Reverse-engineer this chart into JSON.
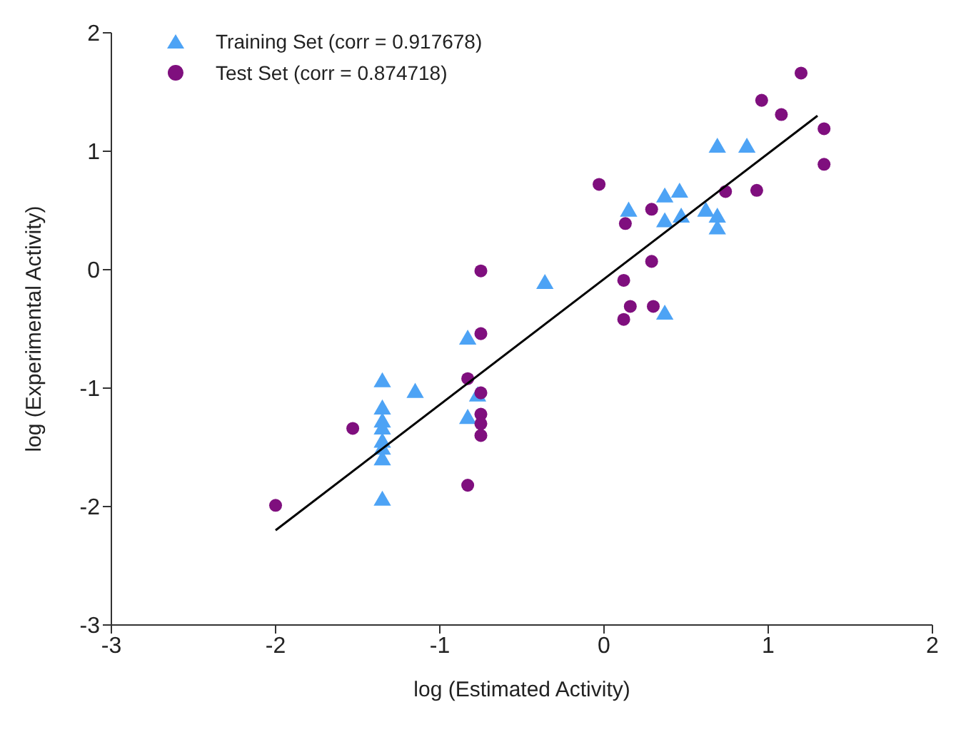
{
  "chart_data": {
    "type": "scatter",
    "xlabel": "log (Estimated Activity)",
    "ylabel": "log (Experimental Activity)",
    "xlim": [
      -3,
      2
    ],
    "ylim": [
      -3,
      2
    ],
    "xticks": [
      -3,
      -2,
      -1,
      0,
      1,
      2
    ],
    "yticks": [
      -3,
      -2,
      -1,
      0,
      1,
      2
    ],
    "grid": false,
    "legend": "top left",
    "series": [
      {
        "name": "Training Set (corr = 0.917678)",
        "color": "#4da3f5",
        "marker": "triangle",
        "x": [
          -1.35,
          -1.35,
          -1.35,
          -1.35,
          -1.35,
          -1.35,
          -1.35,
          -1.35,
          -1.15,
          -0.83,
          -0.83,
          -0.77,
          -0.36,
          0.15,
          0.37,
          0.46,
          0.37,
          0.47,
          0.62,
          0.69,
          0.69,
          0.69,
          0.87,
          0.37
        ],
        "values": [
          -0.95,
          -1.18,
          -1.29,
          -1.35,
          -1.46,
          -1.52,
          -1.61,
          -1.95,
          -1.04,
          -0.59,
          -1.26,
          -1.07,
          -0.12,
          0.49,
          0.61,
          0.65,
          0.4,
          0.44,
          0.49,
          0.44,
          0.34,
          1.03,
          1.03,
          -0.38
        ]
      },
      {
        "name": "Test Set (corr = 0.874718)",
        "color": "#7f0f7e",
        "marker": "circle",
        "x": [
          -2,
          -1.53,
          -0.83,
          -0.83,
          -0.75,
          -0.75,
          -0.75,
          -0.75,
          -0.75,
          -0.75,
          -0.03,
          0.29,
          0.13,
          0.29,
          0.12,
          0.16,
          0.12,
          0.3,
          0.74,
          0.93,
          1.2,
          0.96,
          1.08,
          1.34,
          1.34
        ],
        "values": [
          -1.99,
          -1.34,
          -1.82,
          -0.92,
          -0.01,
          -0.54,
          -1.04,
          -1.22,
          -1.3,
          -1.4,
          0.72,
          0.51,
          0.39,
          0.07,
          -0.09,
          -0.31,
          -0.42,
          -0.31,
          0.66,
          0.67,
          1.66,
          1.43,
          1.31,
          1.19,
          0.89
        ]
      },
      {
        "type": "line",
        "color": "#000000",
        "marker": "none",
        "x": [
          -2,
          1.3
        ],
        "values": [
          -2.2,
          1.3
        ]
      }
    ]
  }
}
